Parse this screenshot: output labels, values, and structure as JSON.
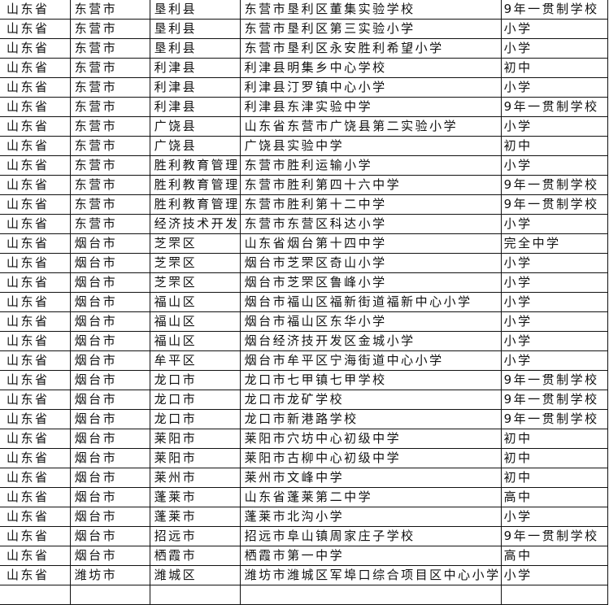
{
  "rows": [
    [
      "山东省",
      "东营市",
      "垦利县",
      "东营市垦利区董集实验学校",
      "9年一贯制学校"
    ],
    [
      "山东省",
      "东营市",
      "垦利县",
      "东营市垦利区第三实验小学",
      "小学"
    ],
    [
      "山东省",
      "东营市",
      "垦利县",
      "东营市垦利区永安胜利希望小学",
      "小学"
    ],
    [
      "山东省",
      "东营市",
      "利津县",
      "利津县明集乡中心学校",
      "初中"
    ],
    [
      "山东省",
      "东营市",
      "利津县",
      "利津县汀罗镇中心小学",
      "小学"
    ],
    [
      "山东省",
      "东营市",
      "利津县",
      "利津县东津实验中学",
      "9年一贯制学校"
    ],
    [
      "山东省",
      "东营市",
      "广饶县",
      "山东省东营市广饶县第二实验小学",
      "小学"
    ],
    [
      "山东省",
      "东营市",
      "广饶县",
      "广饶县实验中学",
      "初中"
    ],
    [
      "山东省",
      "东营市",
      "胜利教育管理",
      "东营市胜利运输小学",
      "小学"
    ],
    [
      "山东省",
      "东营市",
      "胜利教育管理",
      "东营市胜利第四十六中学",
      "9年一贯制学校"
    ],
    [
      "山东省",
      "东营市",
      "胜利教育管理",
      "东营市胜利第十二中学",
      "9年一贯制学校"
    ],
    [
      "山东省",
      "东营市",
      "经济技术开发",
      "东营市东营区科达小学",
      "小学"
    ],
    [
      "山东省",
      "烟台市",
      "芝罘区",
      "山东省烟台第十四中学",
      "完全中学"
    ],
    [
      "山东省",
      "烟台市",
      "芝罘区",
      "烟台市芝罘区奇山小学",
      "小学"
    ],
    [
      "山东省",
      "烟台市",
      "芝罘区",
      "烟台市芝罘区鲁峰小学",
      "小学"
    ],
    [
      "山东省",
      "烟台市",
      "福山区",
      "烟台市福山区福新街道福新中心小学",
      "小学"
    ],
    [
      "山东省",
      "烟台市",
      "福山区",
      "烟台市福山区东华小学",
      "小学"
    ],
    [
      "山东省",
      "烟台市",
      "福山区",
      "烟台经济技开发区金城小学",
      "小学"
    ],
    [
      "山东省",
      "烟台市",
      "牟平区",
      "烟台市牟平区宁海街道中心小学",
      "小学"
    ],
    [
      "山东省",
      "烟台市",
      "龙口市",
      "龙口市七甲镇七甲学校",
      "9年一贯制学校"
    ],
    [
      "山东省",
      "烟台市",
      "龙口市",
      "龙口市龙矿学校",
      "9年一贯制学校"
    ],
    [
      "山东省",
      "烟台市",
      "龙口市",
      "龙口市新港路学校",
      "9年一贯制学校"
    ],
    [
      "山东省",
      "烟台市",
      "莱阳市",
      "莱阳市穴坊中心初级中学",
      "初中"
    ],
    [
      "山东省",
      "烟台市",
      "莱阳市",
      "莱阳市古柳中心初级中学",
      "初中"
    ],
    [
      "山东省",
      "烟台市",
      "莱州市",
      "莱州市文峰中学",
      "初中"
    ],
    [
      "山东省",
      "烟台市",
      "蓬莱市",
      "山东省蓬莱第二中学",
      "高中"
    ],
    [
      "山东省",
      "烟台市",
      "蓬莱市",
      "蓬莱市北沟小学",
      "小学"
    ],
    [
      "山东省",
      "烟台市",
      "招远市",
      "招远市阜山镇周家庄子学校",
      "9年一贯制学校"
    ],
    [
      "山东省",
      "烟台市",
      "栖霞市",
      "栖霞市第一中学",
      "高中"
    ],
    [
      "山东省",
      "潍坊市",
      "潍城区",
      "潍坊市潍城区军埠口综合项目区中心小学",
      "小学"
    ],
    [
      "",
      "",
      "",
      "",
      ""
    ]
  ]
}
